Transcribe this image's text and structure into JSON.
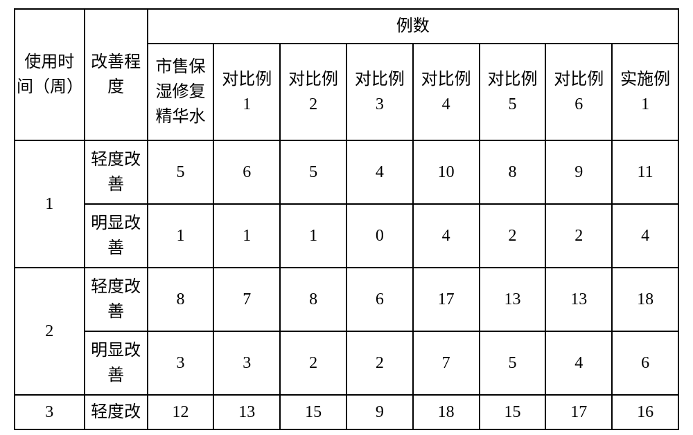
{
  "colors": {
    "background": "#ffffff",
    "border": "#000000",
    "text": "#000000"
  },
  "font": {
    "family": "SimSun",
    "size_pt": 18,
    "line_height": 1.5
  },
  "table": {
    "type": "table",
    "column_widths_pct": [
      10.5,
      9.5,
      10,
      10,
      10,
      10,
      10,
      10,
      10,
      10
    ],
    "header": {
      "time": "使用时\n间（周）",
      "level": "改善程\n度",
      "cases_group": "例数",
      "products": {
        "market": "市售保\n湿修复\n精华水",
        "comp1": "对比例\n1",
        "comp2": "对比例\n2",
        "comp3": "对比例\n3",
        "comp4": "对比例\n4",
        "comp5": "对比例\n5",
        "comp6": "对比例\n6",
        "impl1": "实施例\n1"
      }
    },
    "groups": [
      {
        "time": "1",
        "rows": [
          {
            "level": "轻度改\n善",
            "values": [
              5,
              6,
              5,
              4,
              10,
              8,
              9,
              11
            ]
          },
          {
            "level": "明显改\n善",
            "values": [
              1,
              1,
              1,
              0,
              4,
              2,
              2,
              4
            ]
          }
        ]
      },
      {
        "time": "2",
        "rows": [
          {
            "level": "轻度改\n善",
            "values": [
              8,
              7,
              8,
              6,
              17,
              13,
              13,
              18
            ]
          },
          {
            "level": "明显改\n善",
            "values": [
              3,
              3,
              2,
              2,
              7,
              5,
              4,
              6
            ]
          }
        ]
      },
      {
        "time": "3",
        "rows": [
          {
            "level": "轻度改",
            "values": [
              12,
              13,
              15,
              9,
              18,
              15,
              17,
              16
            ]
          }
        ]
      }
    ]
  }
}
